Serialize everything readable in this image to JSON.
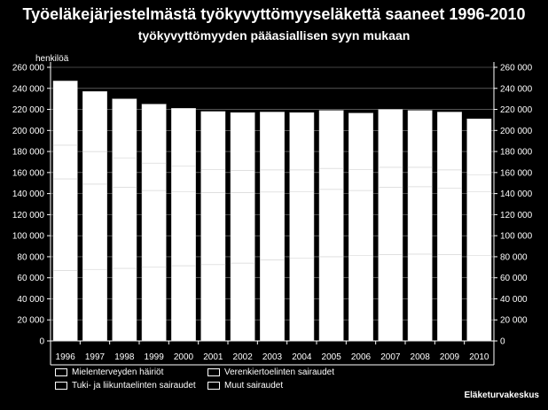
{
  "chart_data": {
    "type": "bar",
    "stacked": true,
    "title": "Työeläkejärjestelmästä työkyvyttömyyseläkettä saaneet 1996-2010",
    "subtitle": "työkyvyttömyyden pääasiallisen syyn mukaan",
    "ylabel": "henkilöä",
    "source": "Eläketurvakeskus",
    "ylim": [
      0,
      260000
    ],
    "yticks": [
      "0",
      "20 000",
      "40 000",
      "60 000",
      "80 000",
      "100 000",
      "120 000",
      "140 000",
      "160 000",
      "180 000",
      "200 000",
      "220 000",
      "240 000",
      "260 000"
    ],
    "categories": [
      "1996",
      "1997",
      "1998",
      "1999",
      "2000",
      "2001",
      "2002",
      "2003",
      "2004",
      "2005",
      "2006",
      "2007",
      "2008",
      "2009",
      "2010"
    ],
    "series": [
      {
        "name": "Mielenterveyden häiriöt",
        "color": "#ffffff",
        "values": [
          67000,
          68000,
          69000,
          70000,
          71500,
          72500,
          74000,
          77000,
          78500,
          80000,
          81000,
          82000,
          82500,
          82000,
          81000
        ]
      },
      {
        "name": "Tuki- ja liikuntaelinten sairaudet",
        "color": "#ffffff",
        "values": [
          87000,
          81000,
          77000,
          73000,
          70500,
          68500,
          67000,
          64500,
          63500,
          64000,
          62000,
          64000,
          64000,
          63000,
          61000
        ]
      },
      {
        "name": "Verenkiertoelinten sairaudet",
        "color": "#ffffff",
        "values": [
          32000,
          31000,
          28000,
          26000,
          24000,
          22000,
          21000,
          21000,
          20500,
          20000,
          20000,
          19000,
          18500,
          17500,
          16000
        ]
      },
      {
        "name": "Muut sairaudet",
        "color": "#ffffff",
        "values": [
          61000,
          57000,
          56000,
          56000,
          55000,
          55000,
          55000,
          55000,
          54500,
          55000,
          53500,
          55000,
          54000,
          55000,
          53000
        ]
      }
    ],
    "grid": true,
    "legend_position": "bottom"
  }
}
